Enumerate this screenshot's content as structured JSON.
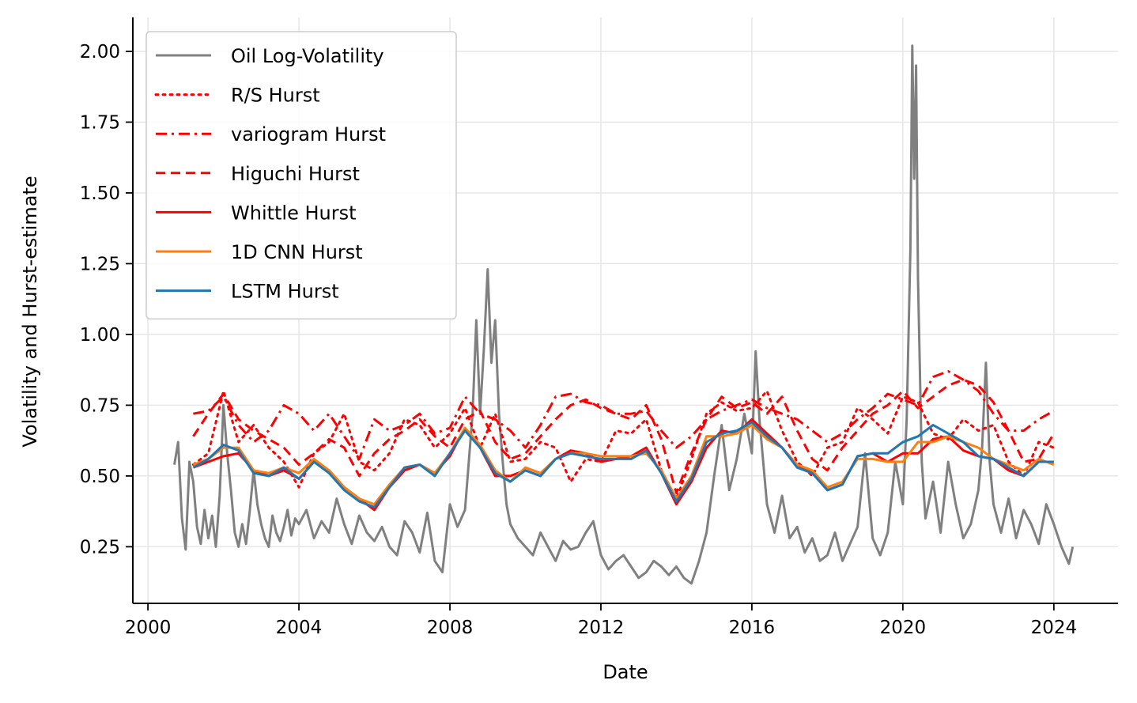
{
  "chart_data": {
    "type": "line",
    "xlabel": "Date",
    "ylabel": "Volatility and Hurst-estimate",
    "x_ticks": [
      2000,
      2004,
      2008,
      2012,
      2016,
      2020,
      2024
    ],
    "x_tick_labels": [
      "2000",
      "2004",
      "2008",
      "2012",
      "2016",
      "2020",
      "2024"
    ],
    "y_ticks": [
      0.25,
      0.5,
      0.75,
      1.0,
      1.25,
      1.5,
      1.75,
      2.0
    ],
    "y_tick_labels": [
      "0.25",
      "0.50",
      "0.75",
      "1.00",
      "1.25",
      "1.50",
      "1.75",
      "2.00"
    ],
    "xlim": [
      1999.6,
      2025.7
    ],
    "ylim": [
      0.05,
      2.12
    ],
    "grid": true,
    "legend_position": "top-left",
    "series": [
      {
        "name": "Oil Log-Volatility",
        "color": "#808080",
        "style": "solid",
        "x": [
          2000.7,
          2000.8,
          2000.9,
          2001.0,
          2001.1,
          2001.2,
          2001.3,
          2001.4,
          2001.5,
          2001.6,
          2001.7,
          2001.8,
          2001.9,
          2002.0,
          2002.1,
          2002.2,
          2002.3,
          2002.4,
          2002.5,
          2002.6,
          2002.7,
          2002.8,
          2002.9,
          2003.0,
          2003.1,
          2003.2,
          2003.3,
          2003.4,
          2003.5,
          2003.6,
          2003.7,
          2003.8,
          2003.9,
          2004.0,
          2004.2,
          2004.4,
          2004.6,
          2004.8,
          2005.0,
          2005.2,
          2005.4,
          2005.6,
          2005.8,
          2006.0,
          2006.2,
          2006.4,
          2006.6,
          2006.8,
          2007.0,
          2007.2,
          2007.4,
          2007.6,
          2007.8,
          2008.0,
          2008.2,
          2008.4,
          2008.5,
          2008.6,
          2008.7,
          2008.8,
          2008.9,
          2009.0,
          2009.1,
          2009.2,
          2009.3,
          2009.4,
          2009.5,
          2009.6,
          2009.8,
          2010.0,
          2010.2,
          2010.4,
          2010.6,
          2010.8,
          2011.0,
          2011.2,
          2011.4,
          2011.6,
          2011.8,
          2012.0,
          2012.2,
          2012.4,
          2012.6,
          2012.8,
          2013.0,
          2013.2,
          2013.4,
          2013.6,
          2013.8,
          2014.0,
          2014.2,
          2014.4,
          2014.6,
          2014.8,
          2015.0,
          2015.2,
          2015.4,
          2015.6,
          2015.8,
          2016.0,
          2016.1,
          2016.2,
          2016.4,
          2016.6,
          2016.8,
          2017.0,
          2017.2,
          2017.4,
          2017.6,
          2017.8,
          2018.0,
          2018.2,
          2018.4,
          2018.6,
          2018.8,
          2019.0,
          2019.2,
          2019.4,
          2019.6,
          2019.8,
          2020.0,
          2020.1,
          2020.2,
          2020.25,
          2020.3,
          2020.35,
          2020.4,
          2020.5,
          2020.6,
          2020.8,
          2021.0,
          2021.2,
          2021.4,
          2021.6,
          2021.8,
          2022.0,
          2022.1,
          2022.2,
          2022.3,
          2022.4,
          2022.6,
          2022.8,
          2023.0,
          2023.2,
          2023.4,
          2023.6,
          2023.8,
          2024.0,
          2024.2,
          2024.4,
          2024.5
        ],
        "y": [
          0.54,
          0.62,
          0.35,
          0.24,
          0.55,
          0.48,
          0.32,
          0.26,
          0.38,
          0.28,
          0.36,
          0.25,
          0.43,
          0.75,
          0.58,
          0.45,
          0.3,
          0.25,
          0.33,
          0.26,
          0.38,
          0.52,
          0.4,
          0.33,
          0.28,
          0.25,
          0.36,
          0.3,
          0.27,
          0.32,
          0.38,
          0.29,
          0.35,
          0.33,
          0.38,
          0.28,
          0.34,
          0.3,
          0.42,
          0.33,
          0.26,
          0.36,
          0.3,
          0.27,
          0.32,
          0.25,
          0.22,
          0.34,
          0.3,
          0.23,
          0.37,
          0.2,
          0.16,
          0.4,
          0.32,
          0.38,
          0.55,
          0.72,
          1.05,
          0.72,
          0.95,
          1.23,
          0.9,
          1.05,
          0.72,
          0.55,
          0.4,
          0.33,
          0.28,
          0.25,
          0.22,
          0.3,
          0.25,
          0.2,
          0.27,
          0.24,
          0.25,
          0.3,
          0.34,
          0.22,
          0.17,
          0.2,
          0.22,
          0.18,
          0.14,
          0.16,
          0.2,
          0.18,
          0.15,
          0.18,
          0.14,
          0.12,
          0.2,
          0.3,
          0.5,
          0.68,
          0.45,
          0.56,
          0.72,
          0.58,
          0.94,
          0.7,
          0.4,
          0.3,
          0.43,
          0.28,
          0.32,
          0.23,
          0.28,
          0.2,
          0.22,
          0.3,
          0.2,
          0.26,
          0.32,
          0.58,
          0.28,
          0.22,
          0.3,
          0.55,
          0.4,
          0.7,
          1.3,
          2.02,
          1.55,
          1.95,
          1.2,
          0.55,
          0.35,
          0.48,
          0.3,
          0.55,
          0.4,
          0.28,
          0.33,
          0.45,
          0.6,
          0.9,
          0.55,
          0.4,
          0.3,
          0.42,
          0.28,
          0.38,
          0.33,
          0.26,
          0.4,
          0.33,
          0.25,
          0.19,
          0.25
        ]
      },
      {
        "name": "R/S Hurst",
        "color": "#ff0000",
        "style": "dotted",
        "x": [
          2001.2,
          2001.6,
          2002.0,
          2002.4,
          2002.8,
          2003.2,
          2003.6,
          2004.0,
          2004.4,
          2004.8,
          2005.2,
          2005.6,
          2006.0,
          2006.4,
          2006.8,
          2007.2,
          2007.6,
          2008.0,
          2008.4,
          2008.8,
          2009.2,
          2009.6,
          2010.0,
          2010.4,
          2010.8,
          2011.2,
          2011.6,
          2012.0,
          2012.4,
          2012.8,
          2013.2,
          2013.6,
          2014.0,
          2014.4,
          2014.8,
          2015.2,
          2015.6,
          2016.0,
          2016.4,
          2016.8,
          2017.2,
          2017.6,
          2018.0,
          2018.4,
          2018.8,
          2019.2,
          2019.6,
          2020.0,
          2020.4,
          2020.8,
          2021.2,
          2021.6,
          2022.0,
          2022.4,
          2022.8,
          2023.2,
          2023.6,
          2024.0
        ],
        "y": [
          0.54,
          0.58,
          0.8,
          0.62,
          0.68,
          0.6,
          0.55,
          0.46,
          0.58,
          0.62,
          0.72,
          0.55,
          0.52,
          0.58,
          0.7,
          0.68,
          0.6,
          0.65,
          0.74,
          0.6,
          0.72,
          0.55,
          0.56,
          0.62,
          0.6,
          0.48,
          0.56,
          0.55,
          0.66,
          0.65,
          0.7,
          0.52,
          0.42,
          0.56,
          0.72,
          0.76,
          0.73,
          0.74,
          0.8,
          0.66,
          0.55,
          0.5,
          0.6,
          0.62,
          0.74,
          0.7,
          0.65,
          0.78,
          0.76,
          0.65,
          0.63,
          0.7,
          0.66,
          0.68,
          0.55,
          0.5,
          0.62,
          0.6
        ]
      },
      {
        "name": "variogram Hurst",
        "color": "#ff0000",
        "style": "dashdot",
        "x": [
          2001.2,
          2001.6,
          2002.0,
          2002.4,
          2002.8,
          2003.2,
          2003.6,
          2004.0,
          2004.4,
          2004.8,
          2005.2,
          2005.6,
          2006.0,
          2006.4,
          2006.8,
          2007.2,
          2007.6,
          2008.0,
          2008.4,
          2008.8,
          2009.2,
          2009.6,
          2010.0,
          2010.4,
          2010.8,
          2011.2,
          2011.6,
          2012.0,
          2012.4,
          2012.8,
          2013.2,
          2013.6,
          2014.0,
          2014.4,
          2014.8,
          2015.2,
          2015.6,
          2016.0,
          2016.4,
          2016.8,
          2017.2,
          2017.6,
          2018.0,
          2018.4,
          2018.8,
          2019.2,
          2019.6,
          2020.0,
          2020.4,
          2020.8,
          2021.2,
          2021.6,
          2022.0,
          2022.4,
          2022.8,
          2023.2,
          2023.6,
          2024.0
        ],
        "y": [
          0.72,
          0.73,
          0.78,
          0.68,
          0.62,
          0.66,
          0.75,
          0.72,
          0.66,
          0.72,
          0.64,
          0.56,
          0.7,
          0.66,
          0.68,
          0.72,
          0.65,
          0.67,
          0.78,
          0.72,
          0.7,
          0.66,
          0.6,
          0.68,
          0.78,
          0.79,
          0.76,
          0.75,
          0.72,
          0.72,
          0.73,
          0.66,
          0.6,
          0.64,
          0.7,
          0.73,
          0.75,
          0.77,
          0.74,
          0.72,
          0.7,
          0.66,
          0.62,
          0.65,
          0.7,
          0.74,
          0.79,
          0.77,
          0.75,
          0.85,
          0.87,
          0.84,
          0.8,
          0.72,
          0.66,
          0.66,
          0.7,
          0.73
        ]
      },
      {
        "name": "Higuchi Hurst",
        "color": "#ff0000",
        "style": "dashed",
        "x": [
          2001.2,
          2001.6,
          2002.0,
          2002.4,
          2002.8,
          2003.2,
          2003.6,
          2004.0,
          2004.4,
          2004.8,
          2005.2,
          2005.6,
          2006.0,
          2006.4,
          2006.8,
          2007.2,
          2007.6,
          2008.0,
          2008.4,
          2008.8,
          2009.2,
          2009.6,
          2010.0,
          2010.4,
          2010.8,
          2011.2,
          2011.6,
          2012.0,
          2012.4,
          2012.8,
          2013.2,
          2013.6,
          2014.0,
          2014.4,
          2014.8,
          2015.2,
          2015.6,
          2016.0,
          2016.4,
          2016.8,
          2017.2,
          2017.6,
          2018.0,
          2018.4,
          2018.8,
          2019.2,
          2019.6,
          2020.0,
          2020.4,
          2020.8,
          2021.2,
          2021.6,
          2022.0,
          2022.4,
          2022.8,
          2023.2,
          2023.6,
          2024.0
        ],
        "y": [
          0.64,
          0.72,
          0.79,
          0.7,
          0.66,
          0.63,
          0.6,
          0.54,
          0.58,
          0.63,
          0.6,
          0.5,
          0.58,
          0.63,
          0.66,
          0.7,
          0.64,
          0.6,
          0.7,
          0.73,
          0.62,
          0.56,
          0.58,
          0.64,
          0.7,
          0.75,
          0.77,
          0.74,
          0.72,
          0.7,
          0.75,
          0.63,
          0.44,
          0.58,
          0.7,
          0.78,
          0.74,
          0.76,
          0.72,
          0.78,
          0.66,
          0.56,
          0.52,
          0.6,
          0.66,
          0.72,
          0.75,
          0.8,
          0.74,
          0.78,
          0.82,
          0.84,
          0.82,
          0.76,
          0.66,
          0.55,
          0.56,
          0.65
        ]
      },
      {
        "name": "Whittle Hurst",
        "color": "#ff0000",
        "style": "solid",
        "x": [
          2001.2,
          2001.6,
          2002.0,
          2002.4,
          2002.8,
          2003.2,
          2003.6,
          2004.0,
          2004.4,
          2004.8,
          2005.2,
          2005.6,
          2006.0,
          2006.4,
          2006.8,
          2007.2,
          2007.6,
          2008.0,
          2008.4,
          2008.8,
          2009.2,
          2009.6,
          2010.0,
          2010.4,
          2010.8,
          2011.2,
          2011.6,
          2012.0,
          2012.4,
          2012.8,
          2013.2,
          2013.6,
          2014.0,
          2014.4,
          2014.8,
          2015.2,
          2015.6,
          2016.0,
          2016.4,
          2016.8,
          2017.2,
          2017.6,
          2018.0,
          2018.4,
          2018.8,
          2019.2,
          2019.6,
          2020.0,
          2020.4,
          2020.8,
          2021.2,
          2021.6,
          2022.0,
          2022.4,
          2022.8,
          2023.2,
          2023.6,
          2024.0
        ],
        "y": [
          0.53,
          0.55,
          0.57,
          0.58,
          0.52,
          0.5,
          0.52,
          0.49,
          0.55,
          0.52,
          0.46,
          0.42,
          0.38,
          0.46,
          0.52,
          0.54,
          0.51,
          0.57,
          0.67,
          0.6,
          0.5,
          0.5,
          0.52,
          0.5,
          0.56,
          0.59,
          0.58,
          0.55,
          0.56,
          0.57,
          0.6,
          0.51,
          0.4,
          0.48,
          0.6,
          0.66,
          0.65,
          0.7,
          0.65,
          0.6,
          0.54,
          0.51,
          0.45,
          0.47,
          0.57,
          0.58,
          0.55,
          0.58,
          0.58,
          0.63,
          0.64,
          0.59,
          0.57,
          0.56,
          0.52,
          0.5,
          0.55,
          0.55
        ]
      },
      {
        "name": "1D CNN Hurst",
        "color": "#ff7f0e",
        "style": "solid",
        "x": [
          2001.2,
          2001.6,
          2002.0,
          2002.4,
          2002.8,
          2003.2,
          2003.6,
          2004.0,
          2004.4,
          2004.8,
          2005.2,
          2005.6,
          2006.0,
          2006.4,
          2006.8,
          2007.2,
          2007.6,
          2008.0,
          2008.4,
          2008.8,
          2009.2,
          2009.6,
          2010.0,
          2010.4,
          2010.8,
          2011.2,
          2011.6,
          2012.0,
          2012.4,
          2012.8,
          2013.2,
          2013.6,
          2014.0,
          2014.4,
          2014.8,
          2015.2,
          2015.6,
          2016.0,
          2016.4,
          2016.8,
          2017.2,
          2017.6,
          2018.0,
          2018.4,
          2018.8,
          2019.2,
          2019.6,
          2020.0,
          2020.4,
          2020.8,
          2021.2,
          2021.6,
          2022.0,
          2022.4,
          2022.8,
          2023.2,
          2023.6,
          2024.0
        ],
        "y": [
          0.54,
          0.56,
          0.6,
          0.6,
          0.52,
          0.51,
          0.53,
          0.51,
          0.56,
          0.52,
          0.46,
          0.42,
          0.4,
          0.47,
          0.53,
          0.54,
          0.51,
          0.58,
          0.67,
          0.61,
          0.52,
          0.48,
          0.53,
          0.51,
          0.56,
          0.58,
          0.58,
          0.57,
          0.57,
          0.57,
          0.58,
          0.52,
          0.42,
          0.5,
          0.64,
          0.64,
          0.65,
          0.68,
          0.63,
          0.6,
          0.54,
          0.52,
          0.46,
          0.48,
          0.56,
          0.56,
          0.55,
          0.55,
          0.62,
          0.62,
          0.64,
          0.62,
          0.6,
          0.56,
          0.54,
          0.52,
          0.56,
          0.54
        ]
      },
      {
        "name": "LSTM Hurst",
        "color": "#1f77b4",
        "style": "solid",
        "x": [
          2001.2,
          2001.6,
          2002.0,
          2002.4,
          2002.8,
          2003.2,
          2003.6,
          2004.0,
          2004.4,
          2004.8,
          2005.2,
          2005.6,
          2006.0,
          2006.4,
          2006.8,
          2007.2,
          2007.6,
          2008.0,
          2008.4,
          2008.8,
          2009.2,
          2009.6,
          2010.0,
          2010.4,
          2010.8,
          2011.2,
          2011.6,
          2012.0,
          2012.4,
          2012.8,
          2013.2,
          2013.6,
          2014.0,
          2014.4,
          2014.8,
          2015.2,
          2015.6,
          2016.0,
          2016.4,
          2016.8,
          2017.2,
          2017.6,
          2018.0,
          2018.4,
          2018.8,
          2019.2,
          2019.6,
          2020.0,
          2020.4,
          2020.8,
          2021.2,
          2021.6,
          2022.0,
          2022.4,
          2022.8,
          2023.2,
          2023.6,
          2024.0
        ],
        "y": [
          0.53,
          0.56,
          0.61,
          0.59,
          0.51,
          0.5,
          0.53,
          0.49,
          0.55,
          0.51,
          0.45,
          0.41,
          0.39,
          0.46,
          0.53,
          0.54,
          0.5,
          0.58,
          0.66,
          0.6,
          0.51,
          0.48,
          0.52,
          0.5,
          0.56,
          0.58,
          0.57,
          0.56,
          0.56,
          0.56,
          0.59,
          0.51,
          0.41,
          0.49,
          0.62,
          0.65,
          0.66,
          0.69,
          0.64,
          0.6,
          0.53,
          0.51,
          0.45,
          0.47,
          0.57,
          0.58,
          0.58,
          0.62,
          0.64,
          0.68,
          0.65,
          0.62,
          0.57,
          0.56,
          0.53,
          0.5,
          0.55,
          0.55
        ]
      }
    ]
  }
}
